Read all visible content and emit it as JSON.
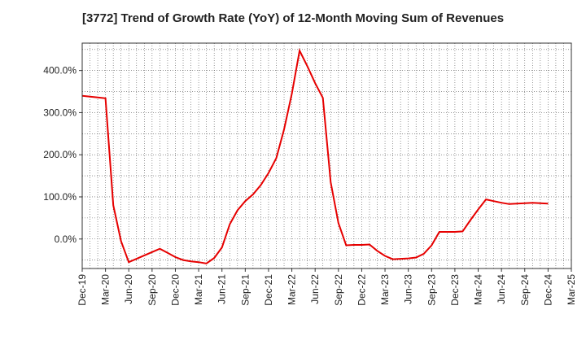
{
  "chart_data": {
    "type": "line",
    "title": "[3772]  Trend of Growth Rate (YoY) of 12-Month Moving Sum of Revenues",
    "xlabel": "",
    "ylabel": "",
    "ylim": [
      -70,
      465
    ],
    "yticks": [
      0,
      100,
      200,
      300,
      400
    ],
    "ytick_labels": [
      "0.0%",
      "100.0%",
      "200.0%",
      "300.0%",
      "400.0%"
    ],
    "x_range": [
      "Dec-19",
      "Mar-25"
    ],
    "xtick_labels": [
      "Dec-19",
      "Mar-20",
      "Jun-20",
      "Sep-20",
      "Dec-20",
      "Mar-21",
      "Jun-21",
      "Sep-21",
      "Dec-21",
      "Mar-22",
      "Jun-22",
      "Sep-22",
      "Dec-22",
      "Mar-23",
      "Jun-23",
      "Sep-23",
      "Dec-23",
      "Mar-24",
      "Jun-24",
      "Sep-24",
      "Dec-24",
      "Mar-25"
    ],
    "grid": true,
    "grid_style": "dotted",
    "line_color": "#e60000",
    "series": [
      {
        "x": [
          "Dec-19",
          "Jan-20",
          "Feb-20",
          "Mar-20",
          "Apr-20",
          "May-20",
          "Jun-20",
          "Jul-20",
          "Aug-20",
          "Sep-20",
          "Oct-20",
          "Nov-20",
          "Dec-20",
          "Jan-21",
          "Feb-21",
          "Mar-21",
          "Apr-21",
          "May-21",
          "Jun-21",
          "Jul-21",
          "Aug-21",
          "Sep-21",
          "Oct-21",
          "Nov-21",
          "Dec-21",
          "Jan-22",
          "Feb-22",
          "Mar-22",
          "Apr-22",
          "May-22",
          "Jun-22",
          "Jul-22",
          "Aug-22",
          "Sep-22",
          "Oct-22",
          "Nov-22",
          "Dec-22",
          "Jan-23",
          "Feb-23",
          "Mar-23",
          "Apr-23",
          "May-23",
          "Jun-23",
          "Jul-23",
          "Aug-23",
          "Sep-23",
          "Oct-23",
          "Nov-23",
          "Dec-23",
          "Jan-24",
          "Feb-24",
          "Mar-24",
          "Apr-24",
          "May-24",
          "Jun-24",
          "Jul-24",
          "Aug-24",
          "Sep-24",
          "Oct-24",
          "Nov-24",
          "Dec-24"
        ],
        "values": [
          340,
          338,
          336,
          334,
          80,
          -5,
          -55,
          -47,
          -39,
          -31,
          -23,
          -33,
          -43,
          -50,
          -53,
          -55,
          -58,
          -45,
          -20,
          35,
          68,
          90,
          106,
          128,
          157,
          192,
          260,
          345,
          447,
          410,
          370,
          335,
          135,
          38,
          -15,
          -14,
          -14,
          -13,
          -28,
          -40,
          -48,
          -47,
          -46,
          -44,
          -35,
          -15,
          17,
          17,
          17,
          18,
          45,
          70,
          94,
          90,
          86,
          83,
          84,
          85,
          86,
          85,
          84
        ]
      }
    ]
  }
}
